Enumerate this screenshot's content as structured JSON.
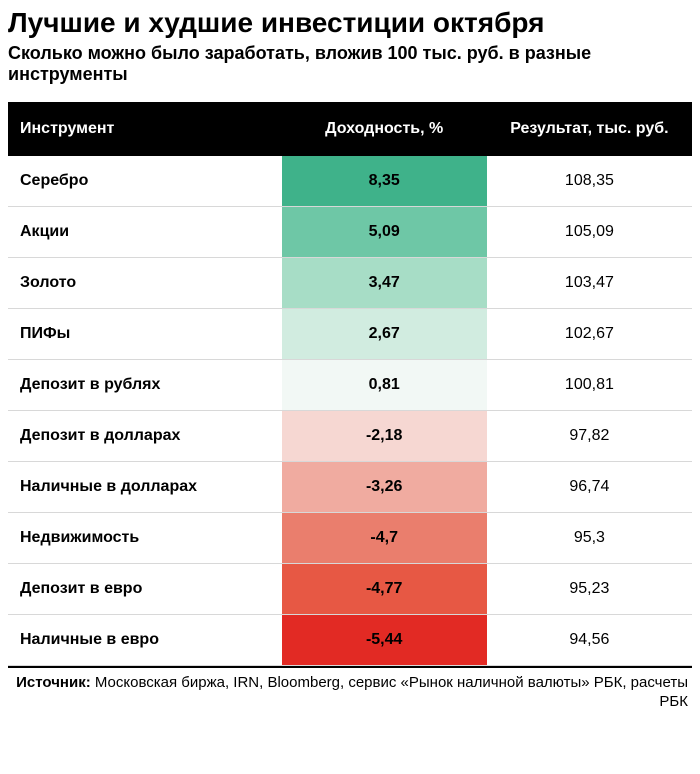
{
  "title": "Лучшие и худшие инвестиции октября",
  "subtitle": "Сколько можно было заработать, вложив 100 тыс. руб. в разные инструменты",
  "columns": {
    "instrument": "Инструмент",
    "yield": "Доходность, %",
    "result": "Результат, тыс. руб."
  },
  "rows": [
    {
      "instrument": "Серебро",
      "yield": "8,35",
      "result": "108,35",
      "yield_bg": "#3fb28a"
    },
    {
      "instrument": "Акции",
      "yield": "5,09",
      "result": "105,09",
      "yield_bg": "#6ec7a6"
    },
    {
      "instrument": "Золото",
      "yield": "3,47",
      "result": "103,47",
      "yield_bg": "#a7ddc6"
    },
    {
      "instrument": "ПИФы",
      "yield": "2,67",
      "result": "102,67",
      "yield_bg": "#d1ece0"
    },
    {
      "instrument": "Депозит в рублях",
      "yield": "0,81",
      "result": "100,81",
      "yield_bg": "#f2f8f5"
    },
    {
      "instrument": "Депозит в долларах",
      "yield": "-2,18",
      "result": "97,82",
      "yield_bg": "#f6d7d2"
    },
    {
      "instrument": "Наличные в долларах",
      "yield": "-3,26",
      "result": "96,74",
      "yield_bg": "#f0aba0"
    },
    {
      "instrument": "Недвижимость",
      "yield": "-4,7",
      "result": "95,3",
      "yield_bg": "#ea7e6d"
    },
    {
      "instrument": "Депозит в евро",
      "yield": "-4,77",
      "result": "95,23",
      "yield_bg": "#e75844"
    },
    {
      "instrument": "Наличные в евро",
      "yield": "-5,44",
      "result": "94,56",
      "yield_bg": "#e22a24"
    }
  ],
  "source": {
    "label": "Источник:",
    "text": "Московская биржа, IRN, Bloomberg, сервис «Рынок наличной валюты» РБК, расчеты РБК"
  },
  "style": {
    "type": "table",
    "header_bg": "#000000",
    "header_fg": "#ffffff",
    "row_border": "#d8d8d8",
    "title_fontsize": 28,
    "subtitle_fontsize": 18,
    "cell_fontsize": 16,
    "col_widths_pct": [
      40,
      30,
      30
    ],
    "background": "#ffffff"
  }
}
